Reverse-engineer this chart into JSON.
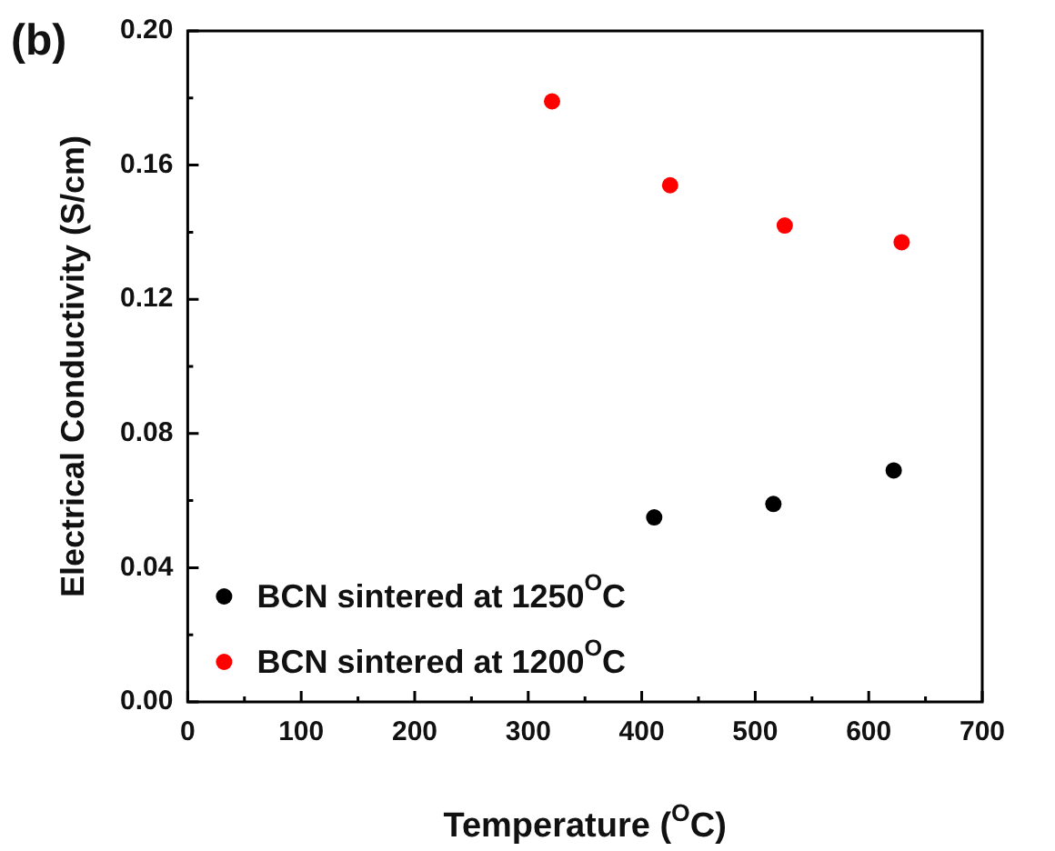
{
  "chart_data": {
    "type": "scatter",
    "xlabel": "Temperature ($^{O}$C)",
    "ylabel": "Electrical Conductivity (S/cm)",
    "annotations": [
      "(b)"
    ],
    "xlim": [
      0,
      700
    ],
    "xticks": [
      0,
      100,
      200,
      300,
      400,
      500,
      600,
      700
    ],
    "ylim": [
      0,
      0.2
    ],
    "yticks": [
      {
        "value": 0,
        "label": "0.00"
      },
      {
        "value": 0.04,
        "label": "0.04"
      },
      {
        "value": 0.08,
        "label": "0.08"
      },
      {
        "value": 0.12,
        "label": "0.12"
      },
      {
        "value": 0.16,
        "label": "0.16"
      },
      {
        "value": 0.2,
        "label": "0.20"
      }
    ],
    "legend": "bottom left",
    "marker": "circle",
    "grid": false,
    "series": [
      {
        "name": "BCN sintered at 1250$^{O}$C",
        "color": "#000000",
        "x": [
          411,
          516,
          622
        ],
        "values": [
          0.055,
          0.059,
          0.069
        ]
      },
      {
        "name": "BCN sintered at 1200$^{O}$C",
        "color": "#ff0000",
        "x": [
          321,
          425,
          526,
          629
        ],
        "values": [
          0.179,
          0.154,
          0.142,
          0.137
        ]
      }
    ]
  }
}
